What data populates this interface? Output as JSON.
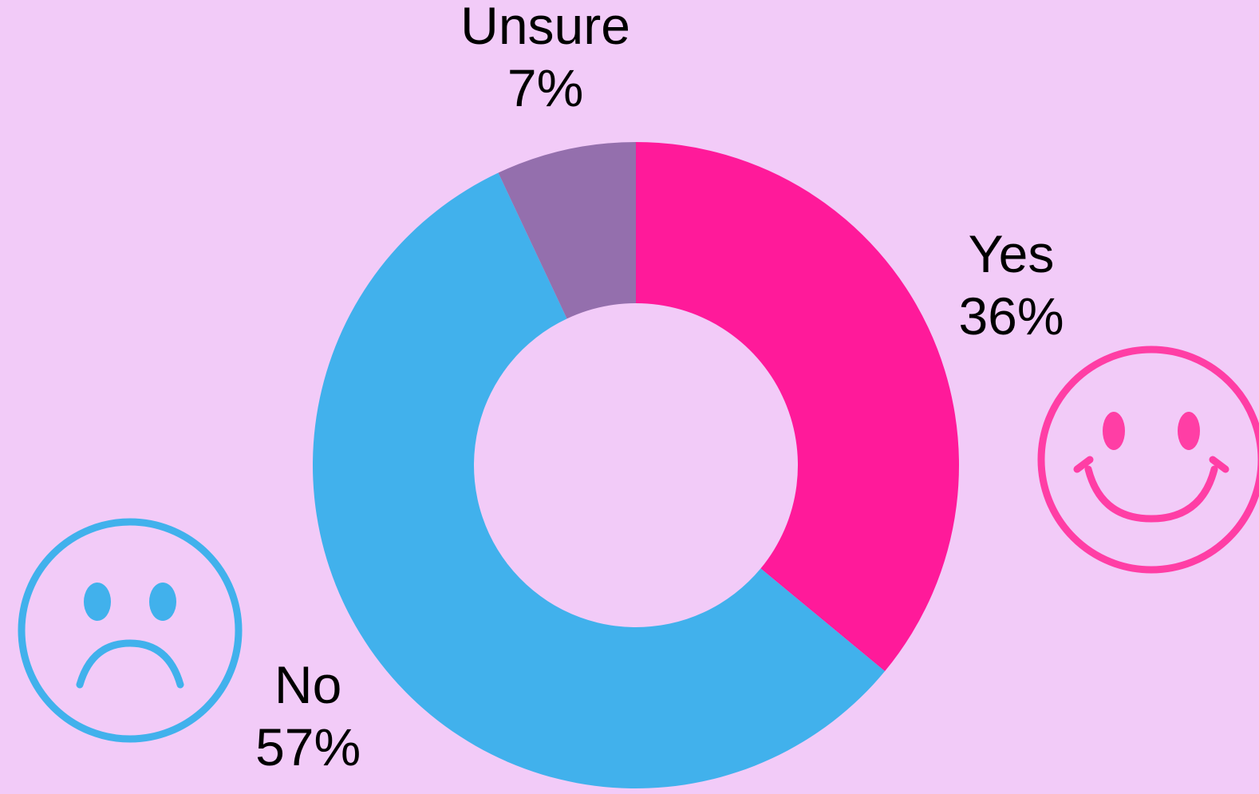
{
  "chart_data": {
    "type": "donut",
    "categories": [
      "Yes",
      "No",
      "Unsure"
    ],
    "values": [
      36,
      57,
      7
    ],
    "value_labels": [
      "36%",
      "57%",
      "7%"
    ],
    "colors": [
      "#ff1a9a",
      "#41b1ec",
      "#946fad"
    ]
  }
}
